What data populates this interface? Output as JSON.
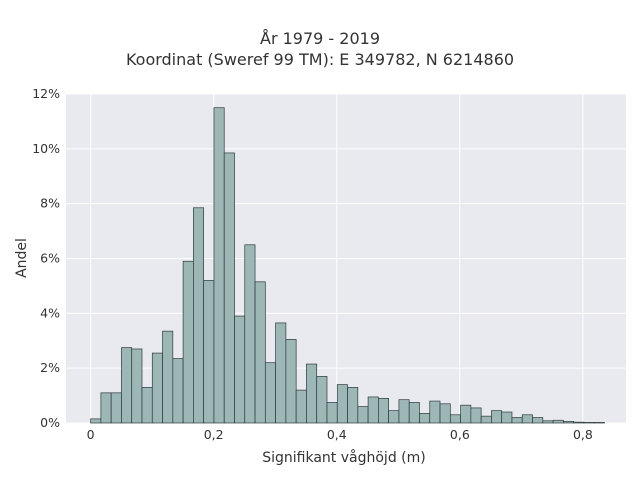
{
  "chart_data": {
    "type": "bar",
    "title_line1": "År 1979 - 2019",
    "title_line2": "Koordinat (Sweref 99 TM): E 349782, N 6214860",
    "xlabel": "Signifikant våghöjd (m)",
    "ylabel": "Andel",
    "xlim": [
      -0.04,
      0.87
    ],
    "ylim": [
      0,
      12
    ],
    "x_ticks": [
      0,
      0.2,
      0.4,
      0.6,
      0.8
    ],
    "x_tick_labels": [
      "0",
      "0,2",
      "0,4",
      "0,6",
      "0,8"
    ],
    "y_ticks": [
      0,
      2,
      4,
      6,
      8,
      10,
      12
    ],
    "y_tick_labels": [
      "0%",
      "2%",
      "4%",
      "6%",
      "8%",
      "10%",
      "12%"
    ],
    "grid": true,
    "bin_width": 0.0167,
    "bin_start": 0,
    "values": [
      0.15,
      1.1,
      1.1,
      2.75,
      2.7,
      1.3,
      2.55,
      3.35,
      2.35,
      5.9,
      7.85,
      5.2,
      11.5,
      9.85,
      3.9,
      6.5,
      5.15,
      2.2,
      3.65,
      3.05,
      1.2,
      2.15,
      1.7,
      0.75,
      1.4,
      1.3,
      0.6,
      0.95,
      0.9,
      0.45,
      0.85,
      0.75,
      0.35,
      0.8,
      0.7,
      0.3,
      0.65,
      0.55,
      0.25,
      0.45,
      0.4,
      0.2,
      0.3,
      0.2,
      0.08,
      0.1,
      0.06,
      0.03,
      0.02,
      0.02
    ],
    "colors": {
      "bar_fill": "#9db7b7",
      "bar_stroke": "#2d3a3a",
      "plot_bg": "#e9e9f0",
      "grid": "#ffffff",
      "text": "#333333"
    }
  }
}
